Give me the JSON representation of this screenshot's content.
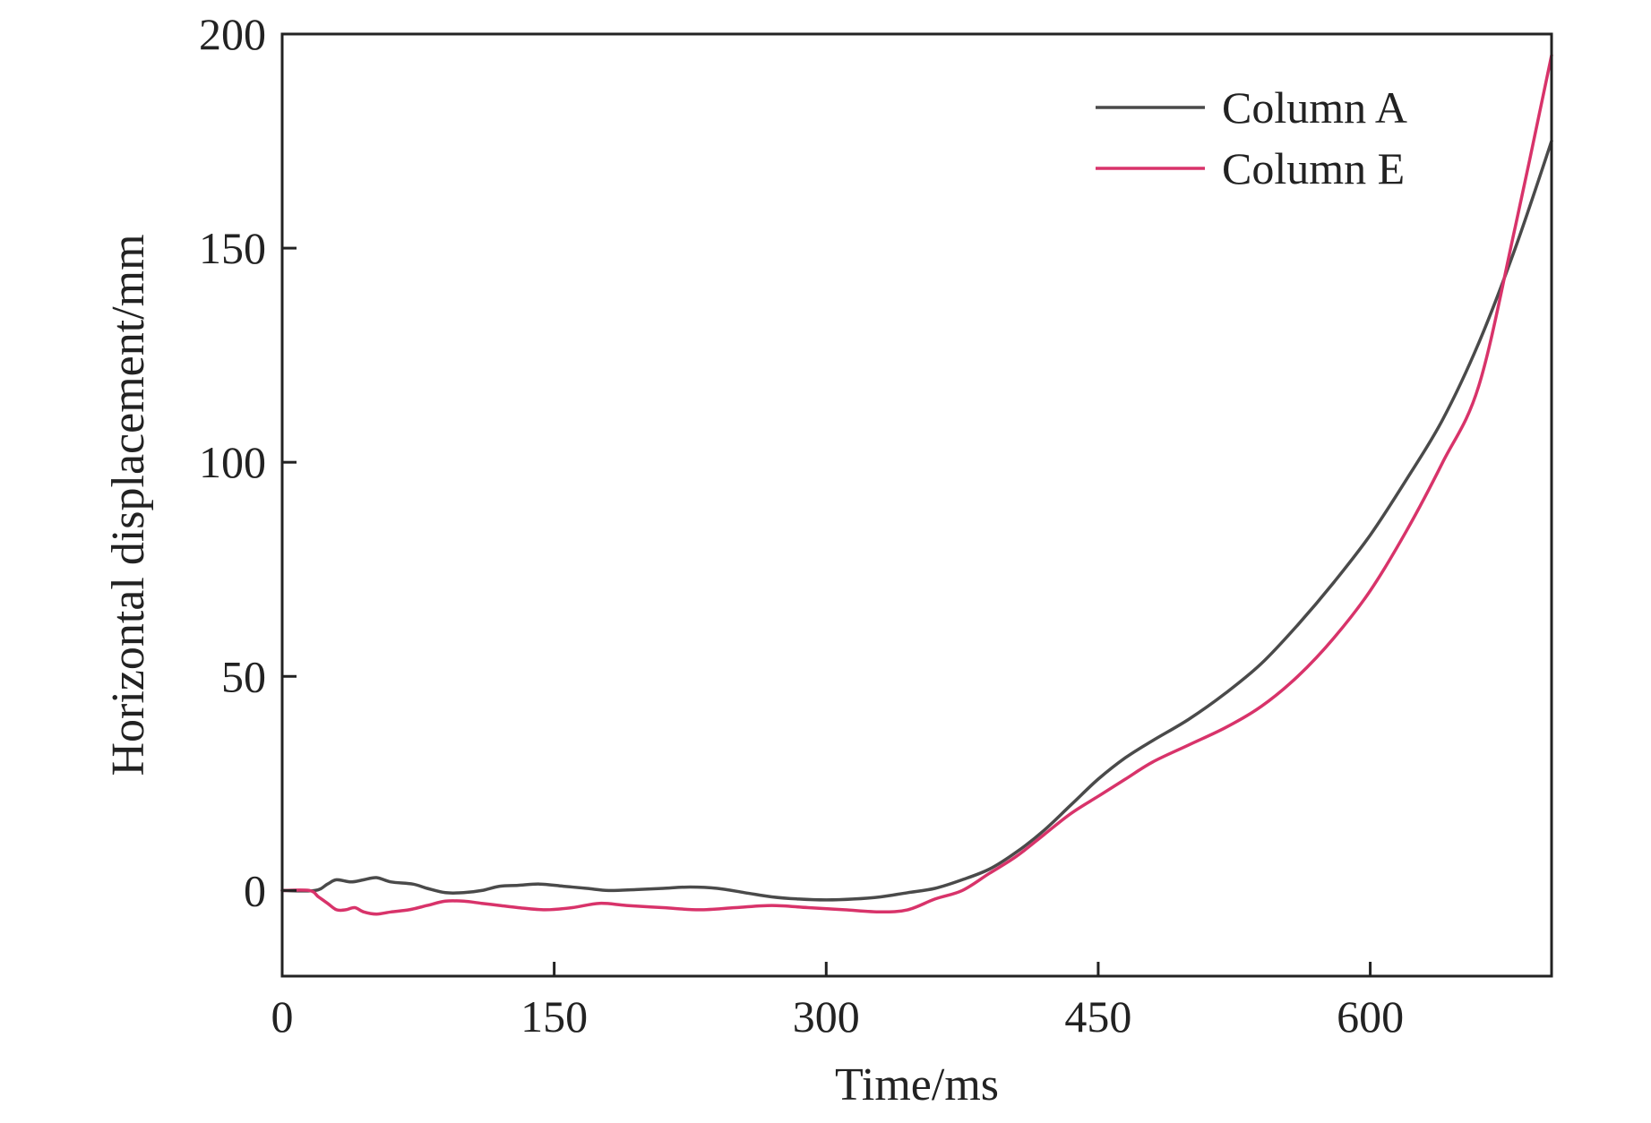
{
  "chart_data": {
    "type": "line",
    "xlabel": "Time/ms",
    "ylabel": "Horizontal displacement/mm",
    "xlim": [
      0,
      700
    ],
    "ylim": [
      -20,
      200
    ],
    "xticks": [
      0,
      150,
      300,
      450,
      600
    ],
    "yticks": [
      0,
      50,
      100,
      150,
      200
    ],
    "grid": false,
    "legend_position": "top-right",
    "series": [
      {
        "name": "Column A",
        "color": "#4a4a4a",
        "x": [
          0,
          18,
          25,
          30,
          38,
          45,
          52,
          60,
          72,
          80,
          90,
          100,
          110,
          120,
          130,
          142,
          155,
          168,
          180,
          195,
          210,
          225,
          240,
          255,
          270,
          285,
          300,
          315,
          330,
          345,
          360,
          375,
          390,
          405,
          420,
          435,
          450,
          465,
          480,
          500,
          520,
          540,
          560,
          580,
          600,
          620,
          640,
          660,
          680,
          700
        ],
        "y": [
          0,
          0,
          1.5,
          2.5,
          2,
          2.5,
          3,
          2,
          1.5,
          0.5,
          -0.5,
          -0.5,
          0,
          1,
          1.2,
          1.5,
          1,
          0.5,
          0,
          0.2,
          0.5,
          0.8,
          0.5,
          -0.5,
          -1.5,
          -2,
          -2.2,
          -2,
          -1.5,
          -0.5,
          0.5,
          2.5,
          5,
          9,
          14,
          20,
          26,
          31,
          35,
          40,
          46,
          53,
          62,
          72,
          83,
          96,
          110,
          128,
          150,
          175
        ]
      },
      {
        "name": "Column E",
        "color": "#d8336a",
        "x": [
          0,
          15,
          20,
          25,
          30,
          35,
          40,
          45,
          52,
          60,
          70,
          80,
          90,
          100,
          110,
          120,
          130,
          145,
          160,
          175,
          190,
          210,
          230,
          250,
          270,
          290,
          310,
          330,
          345,
          360,
          375,
          390,
          405,
          420,
          435,
          450,
          465,
          480,
          500,
          520,
          540,
          560,
          580,
          600,
          620,
          640,
          660,
          680,
          700
        ],
        "y": [
          0,
          0,
          -1.5,
          -3,
          -4.5,
          -4.5,
          -4,
          -5,
          -5.5,
          -5,
          -4.5,
          -3.5,
          -2.5,
          -2.5,
          -3,
          -3.5,
          -4,
          -4.5,
          -4,
          -3,
          -3.5,
          -4,
          -4.5,
          -4,
          -3.5,
          -4,
          -4.5,
          -5,
          -4.5,
          -2,
          0,
          4,
          8,
          13,
          18,
          22,
          26,
          30,
          34,
          38,
          43,
          50,
          59,
          70,
          84,
          100,
          118,
          155,
          195
        ]
      }
    ]
  }
}
